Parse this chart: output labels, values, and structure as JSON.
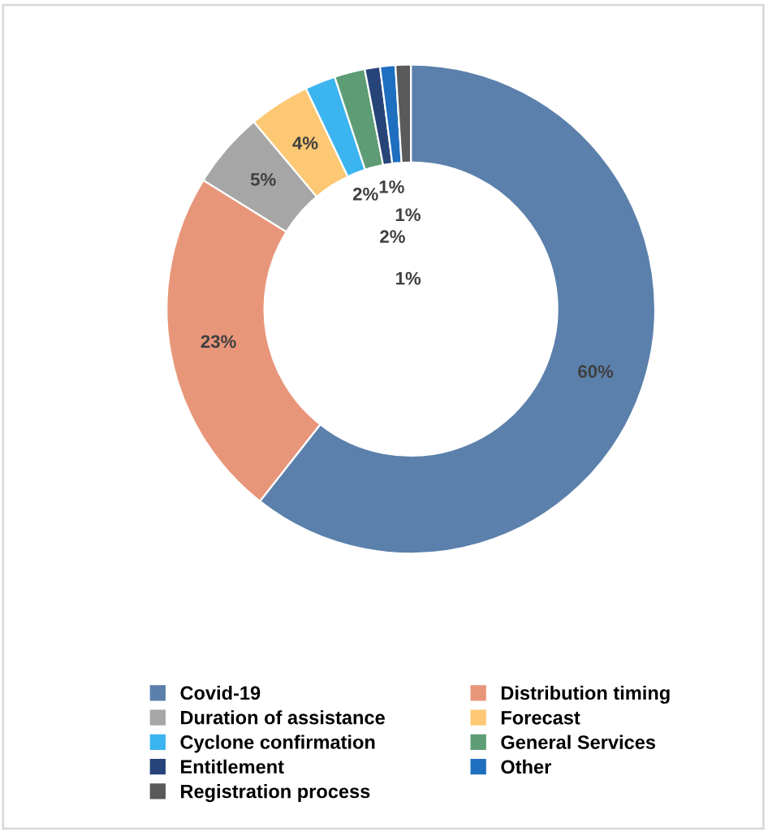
{
  "chart_data": {
    "type": "donut",
    "categories": [
      "Covid-19",
      "Distribution timing",
      "Duration of assistance",
      "Forecast",
      "Cyclone confirmation",
      "General Services",
      "Entitlement",
      "Other",
      "Registration process"
    ],
    "values": [
      60,
      23,
      5,
      4,
      2,
      2,
      1,
      1,
      1
    ],
    "colors": [
      "#5b80ab",
      "#e8967a",
      "#a6a6a6",
      "#fcc873",
      "#3cb4ef",
      "#5e9c76",
      "#264478",
      "#1f6fc0",
      "#5a5a5a"
    ],
    "value_labels": [
      "60%",
      "23%",
      "5%",
      "4%",
      "2%",
      "2%",
      "1%",
      "1%",
      "1%"
    ],
    "legend": "bottom"
  }
}
